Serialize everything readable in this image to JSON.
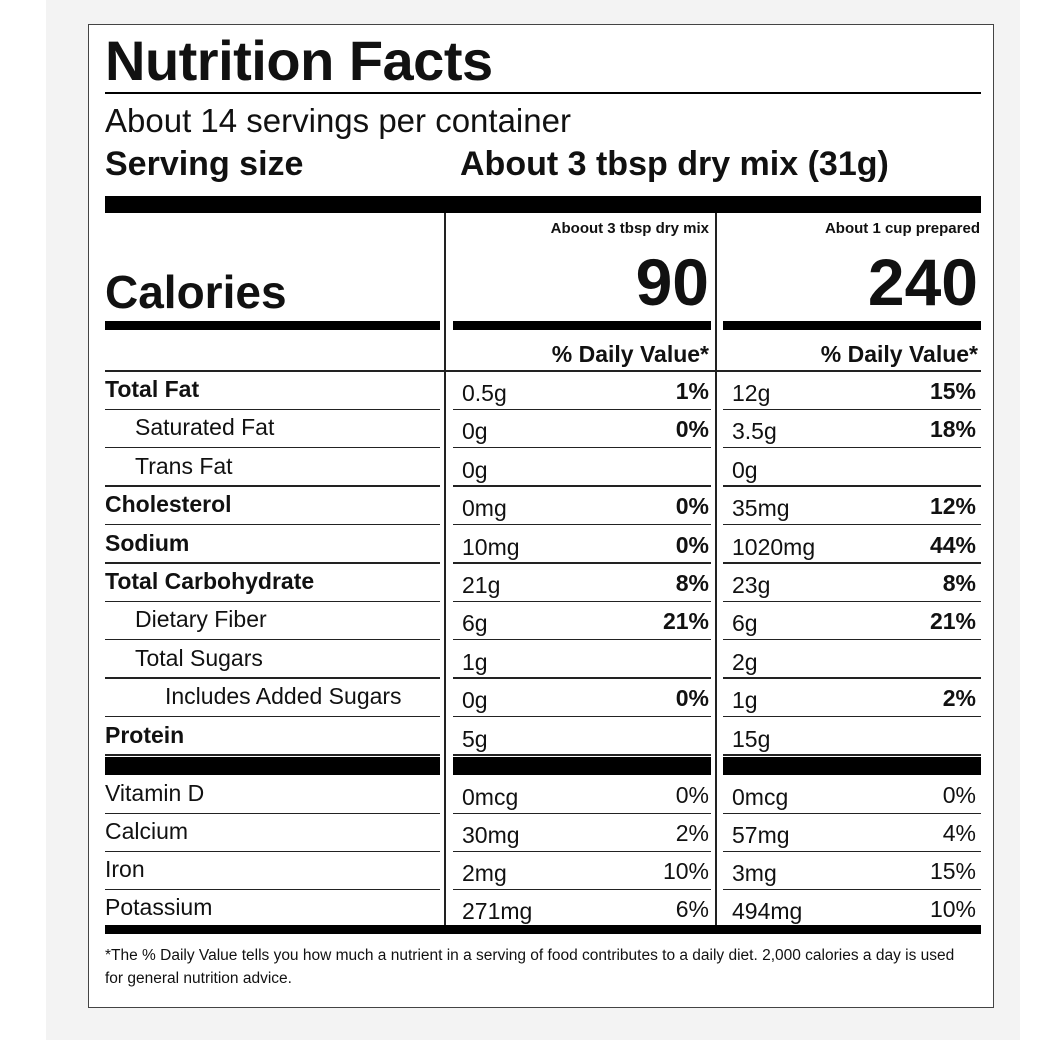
{
  "title": "Nutrition Facts",
  "servings_per_container": "About 14 servings per container",
  "serving_size": {
    "label": "Serving size",
    "value": "About 3 tbsp dry mix (31g)"
  },
  "columns": [
    {
      "header": "Aboout 3 tbsp dry mix",
      "calories": "90",
      "dv_header": "% Daily Value*"
    },
    {
      "header": "About 1 cup prepared",
      "calories": "240",
      "dv_header": "% Daily Value*"
    }
  ],
  "calories_label": "Calories",
  "nutrients": [
    {
      "name": "Total Fat",
      "bold": true,
      "indent": 0,
      "c1_amount": "0.5g",
      "c1_dv": "1%",
      "c2_amount": "12g",
      "c2_dv": "15%",
      "dv_bold": true
    },
    {
      "name": "Saturated Fat",
      "bold": false,
      "indent": 1,
      "c1_amount": "0g",
      "c1_dv": "0%",
      "c2_amount": "3.5g",
      "c2_dv": "18%",
      "dv_bold": true
    },
    {
      "name": "Trans Fat",
      "bold": false,
      "indent": 1,
      "c1_amount": "0g",
      "c1_dv": "",
      "c2_amount": "0g",
      "c2_dv": "",
      "dv_bold": true
    },
    {
      "name": "Cholesterol",
      "bold": true,
      "indent": 0,
      "c1_amount": "0mg",
      "c1_dv": "0%",
      "c2_amount": "35mg",
      "c2_dv": "12%",
      "dv_bold": true
    },
    {
      "name": "Sodium",
      "bold": true,
      "indent": 0,
      "c1_amount": "10mg",
      "c1_dv": "0%",
      "c2_amount": "1020mg",
      "c2_dv": "44%",
      "dv_bold": true
    },
    {
      "name": "Total Carbohydrate",
      "bold": true,
      "indent": 0,
      "c1_amount": "21g",
      "c1_dv": "8%",
      "c2_amount": "23g",
      "c2_dv": "8%",
      "dv_bold": true
    },
    {
      "name": "Dietary Fiber",
      "bold": false,
      "indent": 1,
      "c1_amount": "6g",
      "c1_dv": "21%",
      "c2_amount": "6g",
      "c2_dv": "21%",
      "dv_bold": true
    },
    {
      "name": "Total Sugars",
      "bold": false,
      "indent": 1,
      "c1_amount": "1g",
      "c1_dv": "",
      "c2_amount": "2g",
      "c2_dv": "",
      "dv_bold": true
    },
    {
      "name": "Includes Added Sugars",
      "bold": false,
      "indent": 2,
      "c1_amount": "0g",
      "c1_dv": "0%",
      "c2_amount": "1g",
      "c2_dv": "2%",
      "dv_bold": true
    },
    {
      "name": "Protein",
      "bold": true,
      "indent": 0,
      "c1_amount": "5g",
      "c1_dv": "",
      "c2_amount": "15g",
      "c2_dv": "",
      "dv_bold": true
    }
  ],
  "vitamins": [
    {
      "name": "Vitamin D",
      "c1_amount": "0mcg",
      "c1_dv": "0%",
      "c2_amount": "0mcg",
      "c2_dv": "0%"
    },
    {
      "name": "Calcium",
      "c1_amount": "30mg",
      "c1_dv": "2%",
      "c2_amount": "57mg",
      "c2_dv": "4%"
    },
    {
      "name": "Iron",
      "c1_amount": "2mg",
      "c1_dv": "10%",
      "c2_amount": "3mg",
      "c2_dv": "15%"
    },
    {
      "name": "Potassium",
      "c1_amount": "271mg",
      "c1_dv": "6%",
      "c2_amount": "494mg",
      "c2_dv": "10%"
    }
  ],
  "footnote": "*The % Daily Value tells you how much a nutrient in a serving of food contributes to a daily diet. 2,000 calories a day is used for general nutrition advice."
}
